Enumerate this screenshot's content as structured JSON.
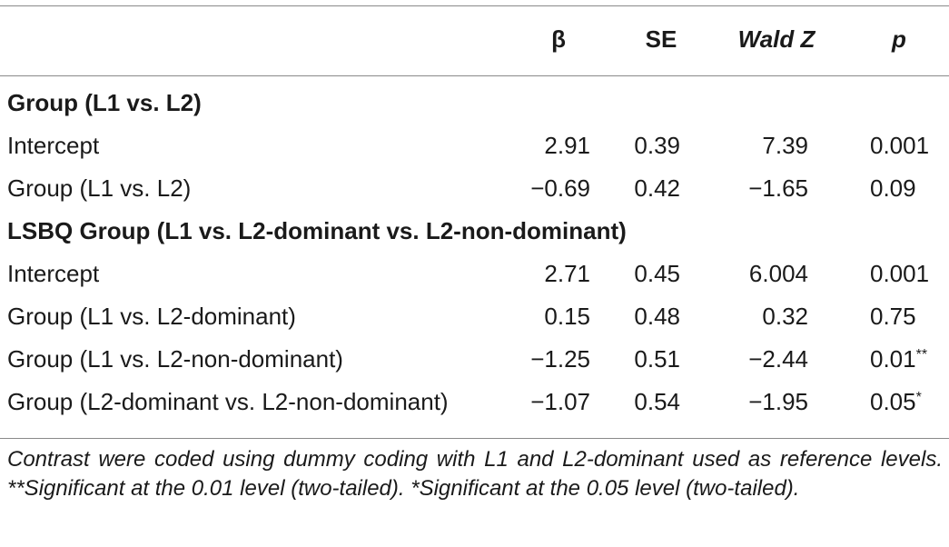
{
  "table": {
    "headers": {
      "beta": "β",
      "se": "SE",
      "wald": "Wald Z",
      "p": "p"
    },
    "sections": [
      {
        "title": "Group (L1 vs. L2)",
        "rows": [
          {
            "label": "Intercept",
            "beta": "2.91",
            "se": "0.39",
            "wald": "7.39",
            "p": "0.001",
            "sig": ""
          },
          {
            "label": "Group (L1 vs. L2)",
            "beta": "−0.69",
            "se": "0.42",
            "wald": "−1.65",
            "p": "0.09",
            "sig": ""
          }
        ]
      },
      {
        "title": "LSBQ Group (L1 vs. L2-dominant vs. L2-non-dominant)",
        "rows": [
          {
            "label": "Intercept",
            "beta": "2.71",
            "se": "0.45",
            "wald": "6.004",
            "p": "0.001",
            "sig": ""
          },
          {
            "label": "Group (L1 vs. L2-dominant)",
            "beta": "0.15",
            "se": "0.48",
            "wald": "0.32",
            "p": "0.75",
            "sig": ""
          },
          {
            "label": "Group (L1 vs. L2-non-dominant)",
            "beta": "−1.25",
            "se": "0.51",
            "wald": "−2.44",
            "p": "0.01",
            "sig": "**"
          },
          {
            "label": "Group (L2-dominant vs. L2-non-dominant)",
            "beta": "−1.07",
            "se": "0.54",
            "wald": "−1.95",
            "p": "0.05",
            "sig": "*"
          }
        ]
      }
    ],
    "footnote": "Contrast were coded using dummy coding with L1 and L2-dominant used as reference levels. **Significant at the 0.01 level (two-tailed). *Significant at the 0.05 level (two-tailed)."
  }
}
